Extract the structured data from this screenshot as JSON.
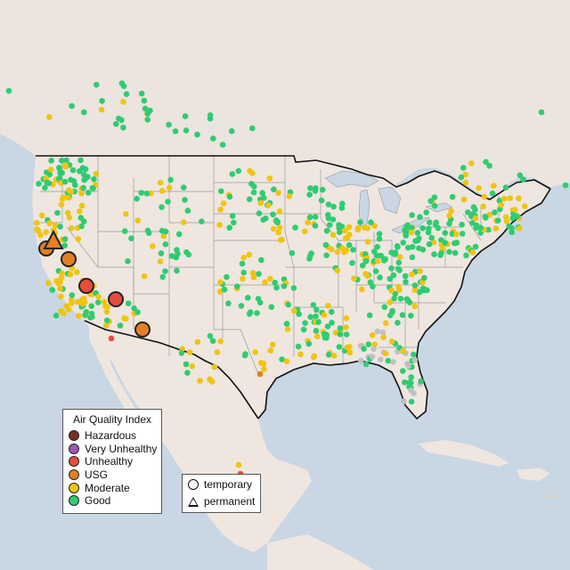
{
  "colors": {
    "ocean": "#c9d6e3",
    "land": "#efe6e0",
    "land_canada": "#ece4de",
    "lakes": "#c9d6e3",
    "state_border": "#9a9a9a",
    "national_border": "#111111",
    "good": "#2ecc71",
    "moderate": "#f1c40f",
    "usg": "#e67e22",
    "unhealthy": "#e74c3c",
    "very_unhealthy": "#8e44ad",
    "hazardous": "#7b2d1f",
    "no_data": "#c0c0c0"
  },
  "legend": {
    "title": "Air Quality Index",
    "categories": [
      {
        "label": "Hazardous",
        "color": "#7b2d1f"
      },
      {
        "label": "Very Unhealthy",
        "color": "#9b59b6"
      },
      {
        "label": "Unhealthy",
        "color": "#e74c3c"
      },
      {
        "label": "USG",
        "color": "#e67e22"
      },
      {
        "label": "Moderate",
        "color": "#f1c40f"
      },
      {
        "label": "Good",
        "color": "#2ecc71"
      }
    ]
  },
  "monitor_legend": {
    "temporary_label": "temporary",
    "permanent_label": "permanent"
  }
}
